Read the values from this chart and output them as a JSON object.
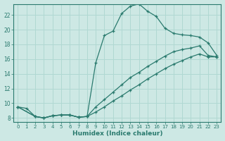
{
  "xlabel": "Humidex (Indice chaleur)",
  "xlim": [
    -0.5,
    23.5
  ],
  "ylim": [
    7.5,
    23.5
  ],
  "xticks": [
    0,
    1,
    2,
    3,
    4,
    5,
    6,
    7,
    8,
    9,
    10,
    11,
    12,
    13,
    14,
    15,
    16,
    17,
    18,
    19,
    20,
    21,
    22,
    23
  ],
  "yticks": [
    8,
    10,
    12,
    14,
    16,
    18,
    20,
    22
  ],
  "bg_color": "#cde8e4",
  "grid_color": "#b0d8d2",
  "line_color": "#2a7a6e",
  "line1_x": [
    0,
    1,
    2,
    3,
    4,
    5,
    6,
    7,
    8,
    9,
    10,
    11,
    12,
    13,
    14,
    15,
    16,
    17,
    18,
    19,
    20,
    21,
    22,
    23
  ],
  "line1_y": [
    9.5,
    9.3,
    8.2,
    8.0,
    8.3,
    8.4,
    8.4,
    8.1,
    8.2,
    15.5,
    19.2,
    19.8,
    22.2,
    23.2,
    23.5,
    22.5,
    21.8,
    20.2,
    19.5,
    19.3,
    19.2,
    19.0,
    18.2,
    16.5
  ],
  "line2_x": [
    0,
    2,
    3,
    4,
    5,
    6,
    7,
    8,
    9,
    10,
    11,
    12,
    13,
    14,
    15,
    16,
    17,
    18,
    19,
    20,
    21,
    22,
    23
  ],
  "line2_y": [
    9.5,
    8.2,
    8.0,
    8.3,
    8.4,
    8.4,
    8.1,
    8.2,
    9.5,
    10.5,
    11.5,
    12.5,
    13.5,
    14.2,
    15.0,
    15.7,
    16.4,
    17.0,
    17.3,
    17.5,
    17.8,
    16.5,
    16.3
  ],
  "line3_x": [
    0,
    2,
    3,
    4,
    5,
    6,
    7,
    8,
    9,
    10,
    11,
    12,
    13,
    14,
    15,
    16,
    17,
    18,
    19,
    20,
    21,
    22,
    23
  ],
  "line3_y": [
    9.5,
    8.2,
    8.0,
    8.3,
    8.4,
    8.4,
    8.1,
    8.2,
    8.8,
    9.5,
    10.3,
    11.0,
    11.8,
    12.5,
    13.3,
    14.0,
    14.7,
    15.3,
    15.8,
    16.3,
    16.7,
    16.3,
    16.3
  ]
}
